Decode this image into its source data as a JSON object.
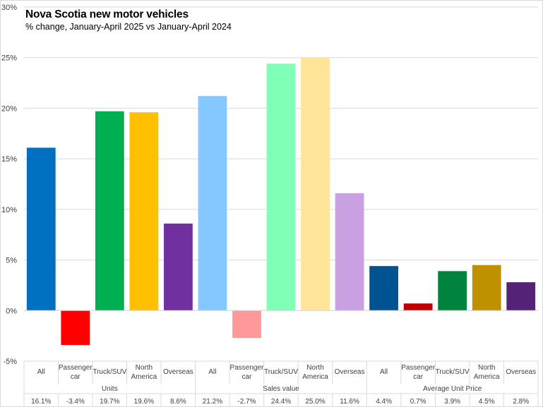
{
  "chart_data": {
    "type": "bar",
    "title": "Nova Scotia new motor vehicles",
    "subtitle": "% change, January-April  2025 vs January-April 2024",
    "xlabel": "",
    "ylabel": "",
    "ylim": [
      -5,
      30
    ],
    "yticks": [
      -5,
      0,
      5,
      10,
      15,
      20,
      25,
      30
    ],
    "ytick_labels": [
      "-5%",
      "0%",
      "5%",
      "10%",
      "15%",
      "20%",
      "25%",
      "30%"
    ],
    "grid": true,
    "groups": [
      {
        "name": "Units",
        "categories": [
          "All",
          "Passenger car",
          "Truck/SUV",
          "North America",
          "Overseas"
        ],
        "values": [
          16.1,
          -3.4,
          19.7,
          19.6,
          8.6
        ],
        "value_labels": [
          "16.1%",
          "-3.4%",
          "19.7%",
          "19.6%",
          "8.6%"
        ],
        "colors": [
          "#0070c0",
          "#ff0000",
          "#00b050",
          "#ffc000",
          "#7030a0"
        ]
      },
      {
        "name": "Sales value",
        "categories": [
          "All",
          "Passenger car",
          "Truck/SUV",
          "North America",
          "Overseas"
        ],
        "values": [
          21.2,
          -2.7,
          24.4,
          25.0,
          11.6
        ],
        "value_labels": [
          "21.2%",
          "-2.7%",
          "24.4%",
          "25.0%",
          "11.6%"
        ],
        "colors": [
          "#85c8ff",
          "#ff9999",
          "#80ffb6",
          "#ffe599",
          "#c9a0e2"
        ]
      },
      {
        "name": "Average Unit Price",
        "categories": [
          "All",
          "Passenger car",
          "Truck/SUV",
          "North America",
          "Overseas"
        ],
        "values": [
          4.4,
          0.7,
          3.9,
          4.5,
          2.8
        ],
        "value_labels": [
          "4.4%",
          "0.7%",
          "3.9%",
          "4.5%",
          "2.8%"
        ],
        "colors": [
          "#005392",
          "#c00000",
          "#00843d",
          "#bf9000",
          "#542378"
        ]
      }
    ]
  }
}
